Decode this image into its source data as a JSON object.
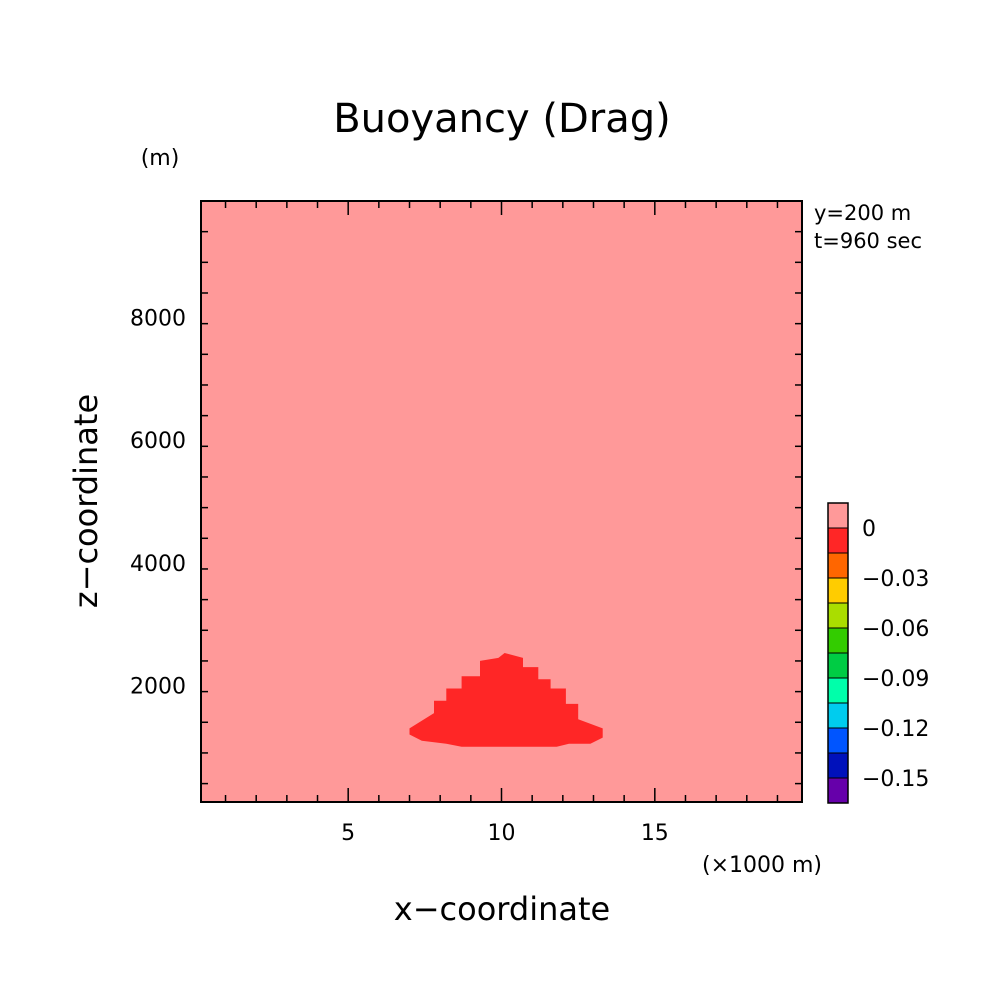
{
  "chart_data": {
    "type": "heatmap",
    "title": "Buoyancy (Drag)",
    "xlabel": "x−coordinate",
    "ylabel": "z−coordinate",
    "x_unit": "(×1000 m)",
    "y_unit": "(m)",
    "annotations": [
      "y=200 m",
      "t=960 sec"
    ],
    "xlim": [
      0.2,
      19.8
    ],
    "ylim": [
      100,
      9900
    ],
    "x_ticks": [
      5,
      10,
      15
    ],
    "x_tick_labels": [
      "5",
      "10",
      "15"
    ],
    "y_ticks": [
      2000,
      4000,
      6000,
      8000
    ],
    "y_tick_labels": [
      "2000",
      "4000",
      "6000",
      "8000"
    ],
    "background_value": 0,
    "background_color": "#ff9999",
    "anomaly": {
      "value_range": [
        -0.015,
        0
      ],
      "color": "#ff2626",
      "outline_x": [
        7.0,
        7.8,
        7.8,
        8.2,
        8.2,
        8.7,
        8.7,
        9.3,
        9.3,
        9.9,
        10.1,
        10.7,
        10.7,
        11.2,
        11.2,
        11.6,
        11.6,
        12.1,
        12.1,
        12.5,
        12.5,
        13.3,
        13.3,
        12.9,
        12.2,
        11.8,
        8.7,
        8.2,
        7.4,
        7.0
      ],
      "outline_z": [
        1300,
        1550,
        1750,
        1750,
        1950,
        1950,
        2150,
        2150,
        2400,
        2450,
        2530,
        2450,
        2300,
        2300,
        2100,
        2100,
        1950,
        1950,
        1700,
        1700,
        1450,
        1300,
        1150,
        1050,
        1050,
        1000,
        1000,
        1050,
        1100,
        1200
      ]
    },
    "colorbar": {
      "labels": [
        "0",
        "−0.03",
        "−0.06",
        "−0.09",
        "−0.12",
        "−0.15"
      ],
      "label_values": [
        0,
        -0.03,
        -0.06,
        -0.09,
        -0.12,
        -0.15
      ],
      "colors": [
        "#ff9999",
        "#ff2626",
        "#ff6600",
        "#ffcc00",
        "#aadd00",
        "#33cc00",
        "#00cc44",
        "#00ffaa",
        "#00ccee",
        "#0055ff",
        "#0011bb",
        "#6600aa"
      ]
    }
  }
}
